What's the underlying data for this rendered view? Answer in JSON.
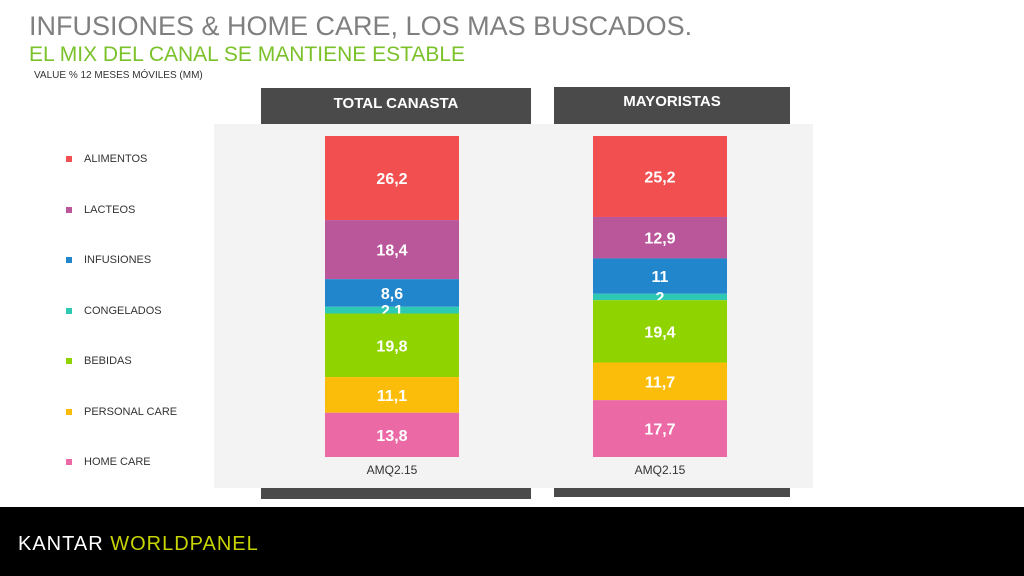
{
  "header": {
    "title": "INFUSIONES & HOME CARE, LOS MAS BUSCADOS.",
    "subtitle": "EL MIX DEL CANAL SE MANTIENE ESTABLE",
    "note": "VALUE % 12 MESES MÓVILES (MM)"
  },
  "chart_data": {
    "type": "bar",
    "stacked": true,
    "legend_position": "left",
    "panels": [
      {
        "name": "TOTAL CANASTA",
        "category": "AMQ2.15"
      },
      {
        "name": "MAYORISTAS",
        "category": "AMQ2.15"
      }
    ],
    "series": [
      {
        "name": "ALIMENTOS",
        "color": "#f25050",
        "values": [
          26.2,
          25.2
        ],
        "labels": [
          "26,2",
          "25,2"
        ]
      },
      {
        "name": "LACTEOS",
        "color": "#b9579a",
        "values": [
          18.4,
          12.9
        ],
        "labels": [
          "18,4",
          "12,9"
        ]
      },
      {
        "name": "INFUSIONES",
        "color": "#2186cc",
        "values": [
          8.6,
          11
        ],
        "labels": [
          "8,6",
          "11"
        ]
      },
      {
        "name": "CONGELADOS",
        "color": "#2ec9b3",
        "values": [
          2.1,
          2
        ],
        "labels": [
          "2,1",
          "2"
        ]
      },
      {
        "name": "BEBIDAS",
        "color": "#8fd400",
        "values": [
          19.8,
          19.4
        ],
        "labels": [
          "19,8",
          "19,4"
        ]
      },
      {
        "name": "PERSONAL CARE",
        "color": "#fbbd09",
        "values": [
          11.1,
          11.7
        ],
        "labels": [
          "11,1",
          "11,7"
        ]
      },
      {
        "name": "HOME CARE",
        "color": "#eb6aa5",
        "values": [
          13.8,
          17.7
        ],
        "labels": [
          "13,8",
          "17,7"
        ]
      }
    ]
  },
  "footer": {
    "logo_part1": "KANTAR ",
    "logo_part2": "WORLDPANEL"
  }
}
